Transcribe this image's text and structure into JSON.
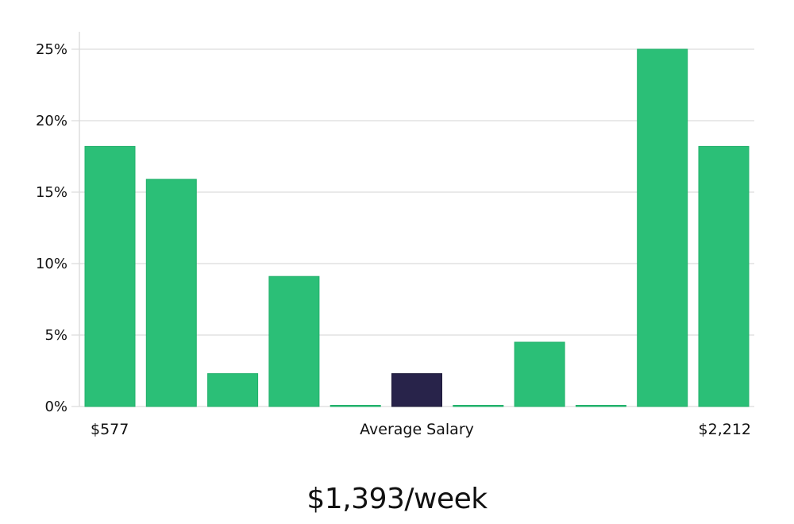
{
  "headline": "$1,393/week",
  "chart_data": {
    "type": "bar",
    "y_format": "percent",
    "ylim": [
      0,
      25
    ],
    "y_ticks": [
      0,
      5,
      10,
      15,
      20,
      25
    ],
    "y_tick_labels": [
      "0%",
      "5%",
      "10%",
      "15%",
      "20%",
      "25%"
    ],
    "grid": true,
    "values": [
      18.2,
      15.9,
      2.3,
      9.1,
      0,
      2.3,
      0,
      4.5,
      0,
      25.0,
      18.2
    ],
    "highlight_index": 5,
    "x_labels": {
      "left": "$577",
      "center": "Average Salary",
      "right": "$2,212"
    },
    "colors": {
      "bar": "#2bbf77",
      "bar_edge": "#22b06b",
      "highlight": "#28234a",
      "grid": "#dcdcdc",
      "axis": "#cccccc"
    }
  }
}
